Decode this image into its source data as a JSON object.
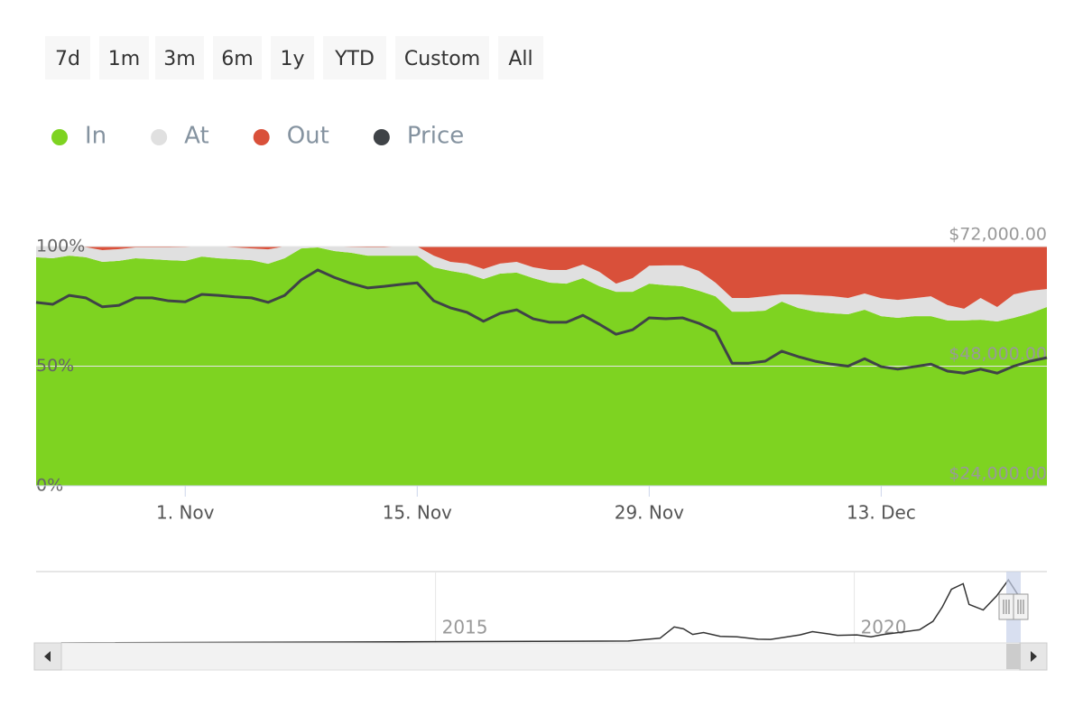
{
  "range_selector": {
    "buttons": [
      "7d",
      "1m",
      "3m",
      "6m",
      "1y",
      "YTD",
      "Custom",
      "All"
    ]
  },
  "chart_data": {
    "type": "area",
    "stacking": "percent",
    "x": [
      "23. Oct",
      "24. Oct",
      "25. Oct",
      "26. Oct",
      "27. Oct",
      "28. Oct",
      "29. Oct",
      "30. Oct",
      "31. Oct",
      "1. Nov",
      "2. Nov",
      "3. Nov",
      "4. Nov",
      "5. Nov",
      "6. Nov",
      "7. Nov",
      "8. Nov",
      "9. Nov",
      "10. Nov",
      "11. Nov",
      "12. Nov",
      "13. Nov",
      "14. Nov",
      "15. Nov",
      "16. Nov",
      "17. Nov",
      "18. Nov",
      "19. Nov",
      "20. Nov",
      "21. Nov",
      "22. Nov",
      "23. Nov",
      "24. Nov",
      "25. Nov",
      "26. Nov",
      "27. Nov",
      "28. Nov",
      "29. Nov",
      "30. Nov",
      "1. Dec",
      "2. Dec",
      "3. Dec",
      "4. Dec",
      "5. Dec",
      "6. Dec",
      "7. Dec",
      "8. Dec",
      "9. Dec",
      "10. Dec",
      "11. Dec",
      "12. Dec",
      "13. Dec",
      "14. Dec",
      "15. Dec",
      "16. Dec",
      "17. Dec",
      "18. Dec",
      "19. Dec",
      "20. Dec",
      "21. Dec",
      "22. Dec",
      "23. Dec"
    ],
    "xticks": [
      "1. Nov",
      "15. Nov",
      "29. Nov",
      "13. Dec"
    ],
    "ylim": [
      0,
      100
    ],
    "yticks": [
      {
        "value": 0,
        "label": "0%"
      },
      {
        "value": 50,
        "label": "50%"
      },
      {
        "value": 100,
        "label": "100%"
      }
    ],
    "y2lim": [
      24000,
      72000
    ],
    "y2ticks": [
      {
        "value": 24000,
        "label": "$24,000.00"
      },
      {
        "value": 48000,
        "label": "$48,000.00"
      },
      {
        "value": 72000,
        "label": "$72,000.00"
      }
    ],
    "legend": "top-left",
    "series": [
      {
        "name": "In",
        "color": "#7ed321",
        "values": [
          95.5,
          95.1,
          96.2,
          95.5,
          93.6,
          94.0,
          95.1,
          94.7,
          94.3,
          94.0,
          95.8,
          95.1,
          94.7,
          94.3,
          92.8,
          95.1,
          99.2,
          99.6,
          98.1,
          97.4,
          96.2,
          96.2,
          96.2,
          96.2,
          91.3,
          89.8,
          88.7,
          86.4,
          88.7,
          89.1,
          86.8,
          84.9,
          84.5,
          86.8,
          83.4,
          81.1,
          81.1,
          84.5,
          83.8,
          83.4,
          81.5,
          79.2,
          72.8,
          72.8,
          73.2,
          77.0,
          74.3,
          72.8,
          72.1,
          71.7,
          73.6,
          70.9,
          70.2,
          70.9,
          70.9,
          69.1,
          69.1,
          69.4,
          68.7,
          70.2,
          72.1,
          74.7
        ]
      },
      {
        "name": "At",
        "color": "#e0e0e0",
        "values": [
          4.5,
          4.9,
          3.8,
          4.2,
          4.9,
          4.9,
          4.5,
          4.9,
          5.3,
          5.7,
          4.2,
          4.9,
          4.9,
          4.9,
          6.0,
          4.9,
          0.8,
          0.4,
          1.9,
          2.3,
          3.4,
          3.4,
          3.8,
          3.8,
          4.9,
          3.8,
          4.2,
          4.2,
          4.2,
          4.5,
          4.5,
          5.3,
          5.7,
          5.7,
          6.0,
          3.4,
          5.7,
          7.5,
          8.3,
          8.7,
          8.3,
          5.7,
          5.7,
          5.7,
          6.0,
          3.0,
          5.7,
          6.8,
          7.2,
          6.8,
          6.8,
          7.5,
          7.5,
          7.5,
          8.3,
          6.4,
          4.9,
          9.1,
          6.0,
          9.8,
          9.4,
          7.5
        ]
      },
      {
        "name": "Out",
        "color": "#d9503a",
        "values": [
          0,
          0,
          0,
          0.4,
          1.5,
          1.1,
          0.4,
          0.4,
          0.4,
          0.4,
          0,
          0,
          0.4,
          0.8,
          1.1,
          0,
          0,
          0,
          0,
          0.4,
          0.4,
          0.4,
          0,
          0,
          3.8,
          6.4,
          7.2,
          9.4,
          7.2,
          6.4,
          8.7,
          9.8,
          9.8,
          7.5,
          10.6,
          15.5,
          13.2,
          7.9,
          7.9,
          7.9,
          10.2,
          15.1,
          21.5,
          21.5,
          20.8,
          20.0,
          20.0,
          20.4,
          20.8,
          21.5,
          19.6,
          21.5,
          22.3,
          21.5,
          20.8,
          24.5,
          26.0,
          21.5,
          25.3,
          20.0,
          18.5,
          17.7
        ]
      },
      {
        "name": "Price",
        "color": "#3f4347",
        "type": "line",
        "axis": "y2",
        "values": [
          60800,
          60400,
          62200,
          61700,
          59900,
          60200,
          61700,
          61700,
          61100,
          60900,
          62400,
          62200,
          61900,
          61700,
          60800,
          62200,
          65300,
          67300,
          65800,
          64600,
          63700,
          64000,
          64400,
          64700,
          61100,
          59700,
          58800,
          57000,
          58600,
          59300,
          57500,
          56800,
          56800,
          58200,
          56400,
          54400,
          55300,
          57700,
          57500,
          57700,
          56600,
          55000,
          48600,
          48600,
          49000,
          51000,
          49900,
          49000,
          48400,
          48000,
          49500,
          47900,
          47400,
          47900,
          48400,
          47000,
          46600,
          47400,
          46600,
          48000,
          49000,
          49700
        ]
      }
    ],
    "navigator": {
      "xlim": [
        2010.23,
        2022.3
      ],
      "ylim": [
        0,
        72000
      ],
      "xticks": [
        2015,
        2020
      ],
      "color": "#333333",
      "x": [
        2010.53,
        2017.3,
        2017.68,
        2017.85,
        2017.96,
        2018.07,
        2018.2,
        2018.4,
        2018.6,
        2018.85,
        2019.0,
        2019.35,
        2019.5,
        2019.7,
        2019.8,
        2020.03,
        2020.2,
        2020.35,
        2020.57,
        2020.78,
        2020.94,
        2021.05,
        2021.16,
        2021.3,
        2021.37,
        2021.54,
        2021.7,
        2021.84,
        2021.97
      ],
      "values": [
        0,
        2000,
        5000,
        17000,
        15000,
        9000,
        11000,
        7000,
        6500,
        4000,
        3700,
        8500,
        12000,
        9500,
        8000,
        8500,
        6500,
        9000,
        11500,
        14000,
        23000,
        38000,
        57000,
        63000,
        41000,
        35000,
        50000,
        67000,
        49000
      ]
    }
  }
}
